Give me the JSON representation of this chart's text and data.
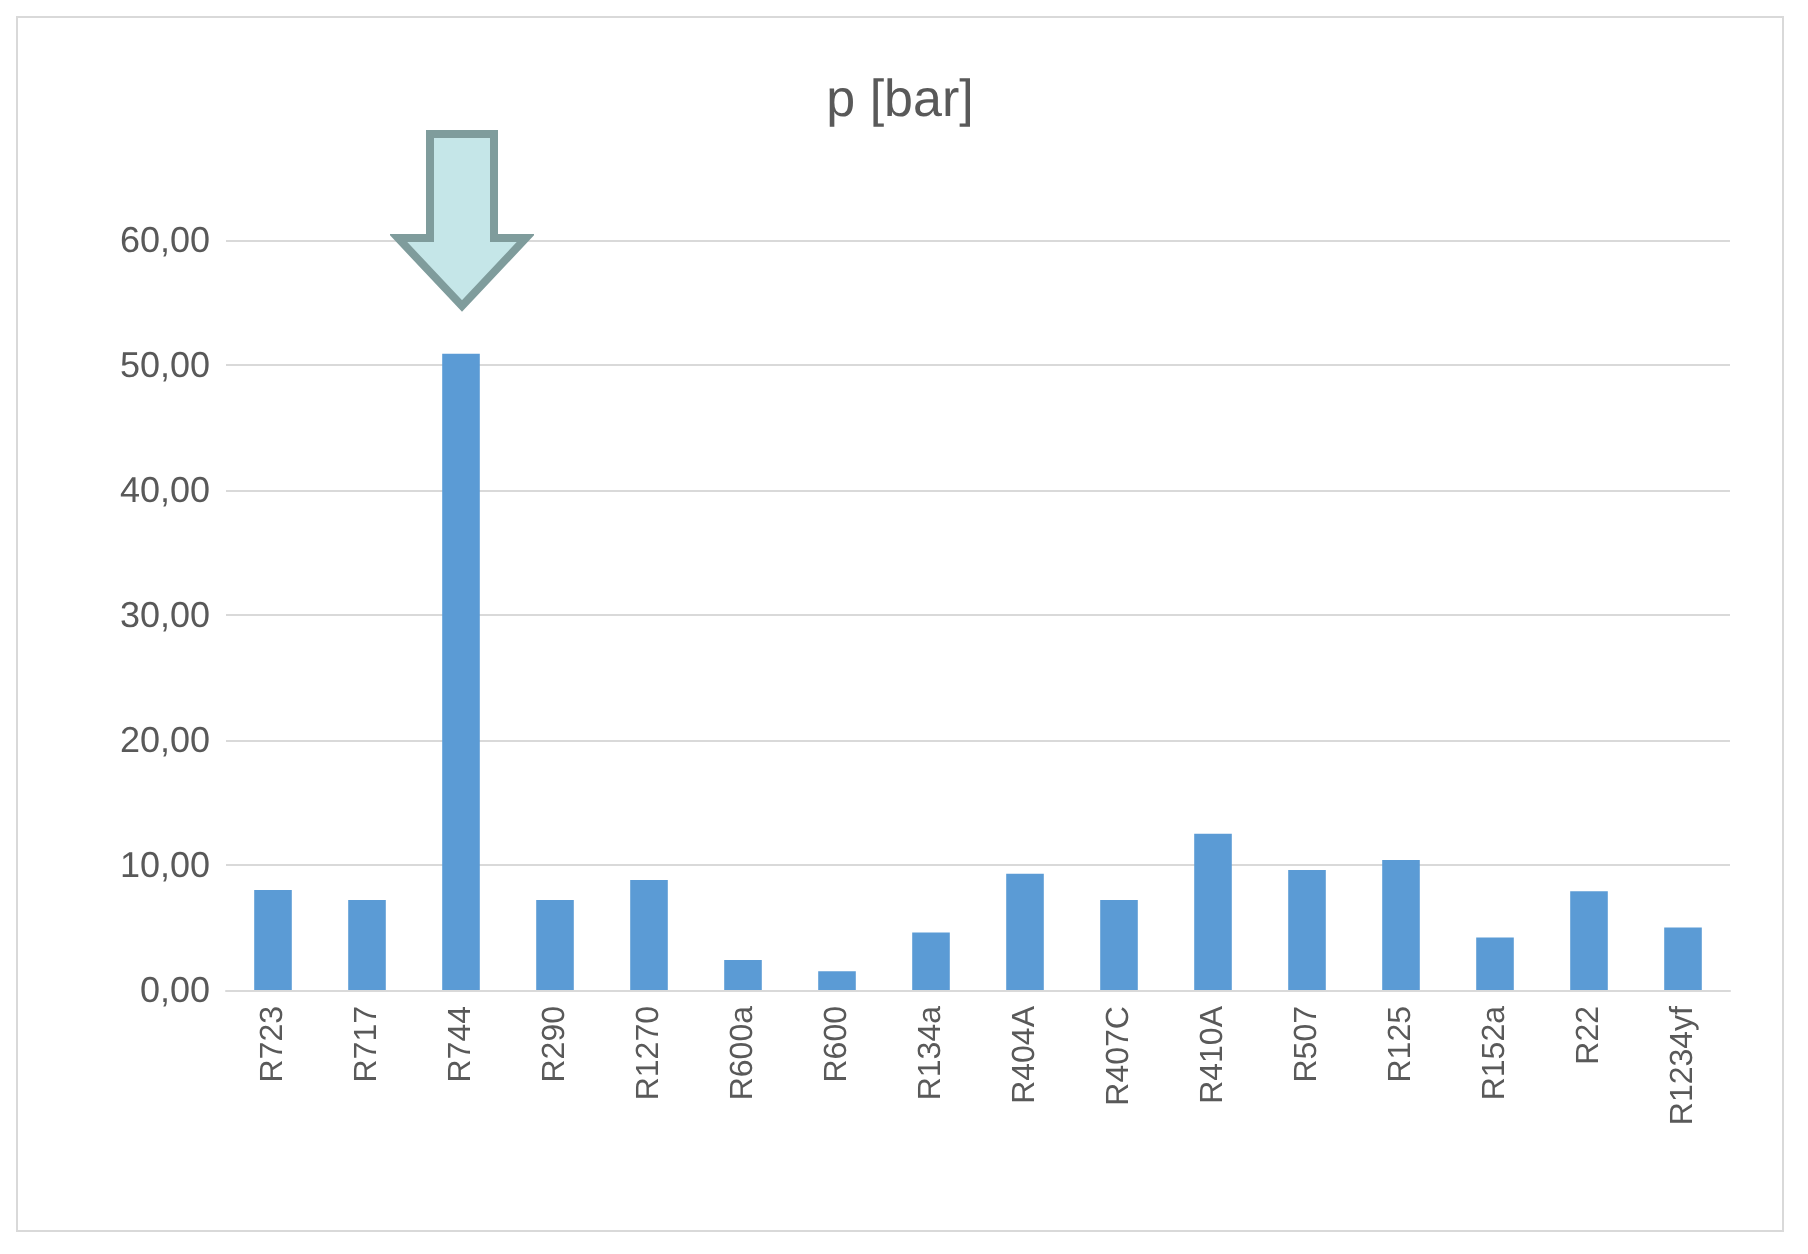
{
  "chart_data": {
    "type": "bar",
    "title": "p [bar]",
    "categories": [
      "R723",
      "R717",
      "R744",
      "R290",
      "R1270",
      "R600a",
      "R600",
      "R134a",
      "R404A",
      "R407C",
      "R410A",
      "R507",
      "R125",
      "R152a",
      "R22",
      "R1234yf"
    ],
    "values": [
      8.0,
      7.2,
      50.9,
      7.2,
      8.8,
      2.4,
      1.5,
      4.6,
      9.3,
      7.2,
      12.5,
      9.6,
      10.4,
      4.2,
      7.9,
      5.0
    ],
    "color": "#5b9bd5",
    "ylim": [
      0,
      60
    ],
    "yticks": [
      {
        "value": 0,
        "label": "0,00"
      },
      {
        "value": 10,
        "label": "10,00"
      },
      {
        "value": 20,
        "label": "20,00"
      },
      {
        "value": 30,
        "label": "30,00"
      },
      {
        "value": 40,
        "label": "40,00"
      },
      {
        "value": 50,
        "label": "50,00"
      },
      {
        "value": 60,
        "label": "60,00"
      }
    ],
    "grid": "y"
  }
}
